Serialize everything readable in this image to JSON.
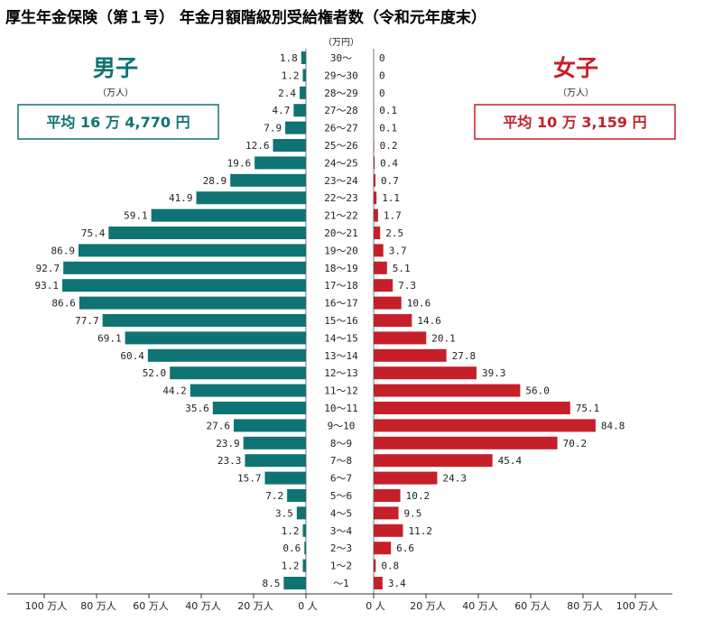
{
  "chart_data": {
    "type": "bar",
    "title": "厚生年金保険（第１号） 年金月額階級別受給権者数（令和元年度末）",
    "category_header": "（万円）",
    "categories": [
      "30～",
      "29～30",
      "28～29",
      "27～28",
      "26～27",
      "25～26",
      "24～25",
      "23～24",
      "22～23",
      "21～22",
      "20～21",
      "19～20",
      "18～19",
      "17～18",
      "16～17",
      "15～16",
      "14～15",
      "13～14",
      "12～13",
      "11～12",
      "10～11",
      "9～10",
      "8～9",
      "7～8",
      "6～7",
      "5～6",
      "4～5",
      "3～4",
      "2～3",
      "1～2",
      "～1"
    ],
    "series": [
      {
        "name": "男子",
        "unit": "（万人）",
        "average": "平均 16 万 4,770 円",
        "color": "#0f7373",
        "values": [
          1.8,
          1.2,
          2.4,
          4.7,
          7.9,
          12.6,
          19.6,
          28.9,
          41.9,
          59.1,
          75.4,
          86.9,
          92.7,
          93.1,
          86.6,
          77.7,
          69.1,
          60.4,
          52.0,
          44.2,
          35.6,
          27.6,
          23.9,
          23.3,
          15.7,
          7.2,
          3.5,
          1.2,
          0.6,
          1.2,
          8.5
        ],
        "labels": [
          "1.8",
          "1.2",
          "2.4",
          "4.7",
          "7.9",
          "12.6",
          "19.6",
          "28.9",
          "41.9",
          "59.1",
          "75.4",
          "86.9",
          "92.7",
          "93.1",
          "86.6",
          "77.7",
          "69.1",
          "60.4",
          "52.0",
          "44.2",
          "35.6",
          "27.6",
          "23.9",
          "23.3",
          "15.7",
          "7.2",
          "3.5",
          "1.2",
          "0.6",
          "1.2",
          "8.5"
        ],
        "axis_ticks": [
          "100 万人",
          "80 万人",
          "60 万人",
          "40 万人",
          "20 万人",
          "0 人"
        ]
      },
      {
        "name": "女子",
        "unit": "（万人）",
        "average": "平均 10 万 3,159 円",
        "color": "#c5202a",
        "values": [
          0,
          0,
          0,
          0.1,
          0.1,
          0.2,
          0.4,
          0.7,
          1.1,
          1.7,
          2.5,
          3.7,
          5.1,
          7.3,
          10.6,
          14.6,
          20.1,
          27.8,
          39.3,
          56.0,
          75.1,
          84.8,
          70.2,
          45.4,
          24.3,
          10.2,
          9.5,
          11.2,
          6.6,
          0.8,
          3.4
        ],
        "labels": [
          "0",
          "0",
          "0",
          "0.1",
          "0.1",
          "0.2",
          "0.4",
          "0.7",
          "1.1",
          "1.7",
          "2.5",
          "3.7",
          "5.1",
          "7.3",
          "10.6",
          "14.6",
          "20.1",
          "27.8",
          "39.3",
          "56.0",
          "75.1",
          "84.8",
          "70.2",
          "45.4",
          "24.3",
          "10.2",
          "9.5",
          "11.2",
          "6.6",
          "0.8",
          "3.4"
        ],
        "axis_ticks": [
          "0 人",
          "20 万人",
          "40 万人",
          "60 万人",
          "80 万人",
          "100 万人"
        ]
      }
    ],
    "xlim": [
      0,
      100
    ],
    "orientation": "horizontal-butterfly",
    "grid": false
  }
}
